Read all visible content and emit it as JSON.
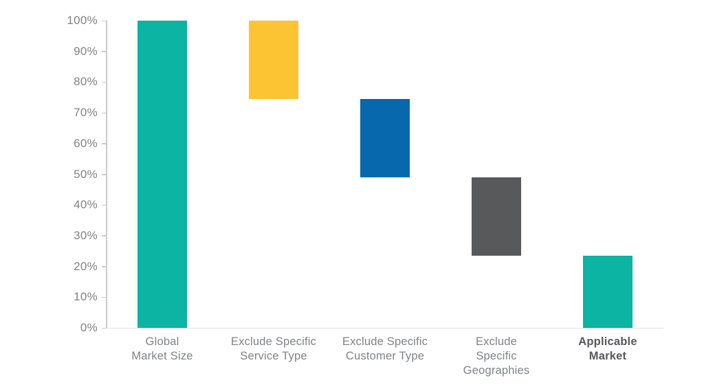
{
  "page": {
    "background": "#FFFFFF"
  },
  "chart_data": {
    "type": "bar",
    "subtype": "waterfall",
    "title": "",
    "xlabel": "",
    "ylabel": "",
    "grid": false,
    "legend": false,
    "categories": [
      "Global Market Size",
      "Exclude Specific Service Type",
      "Exclude Specific Customer Type",
      "Exclude Specific Geographies",
      "Applicable Market"
    ],
    "series": [
      {
        "name": "market-funnel",
        "segments": [
          {
            "category": "Global Market Size",
            "from": 0,
            "to": 100,
            "color": "#0BB4A3",
            "label_lines": [
              "Global",
              "Market Size"
            ],
            "label_bold": false
          },
          {
            "category": "Exclude Specific Service Type",
            "from": 74.5,
            "to": 100,
            "color": "#FCC333",
            "label_lines": [
              "Exclude Specific",
              "Service Type"
            ],
            "label_bold": false
          },
          {
            "category": "Exclude Specific Customer Type",
            "from": 49,
            "to": 74.5,
            "color": "#0768AE",
            "label_lines": [
              "Exclude Specific",
              "Customer Type"
            ],
            "label_bold": false
          },
          {
            "category": "Exclude Specific Geographies",
            "from": 23.5,
            "to": 49,
            "color": "#58595B",
            "label_lines": [
              "Exclude",
              "Specific",
              "Geographies"
            ],
            "label_bold": false
          },
          {
            "category": "Applicable Market",
            "from": 0,
            "to": 23.5,
            "color": "#0BB4A3",
            "label_lines": [
              "Applicable",
              "Market"
            ],
            "label_bold": true
          }
        ]
      }
    ],
    "y_axis": {
      "min": 0,
      "max": 100,
      "step": 10,
      "format": "percent",
      "tick_labels": [
        "0%",
        "10%",
        "20%",
        "30%",
        "40%",
        "50%",
        "60%",
        "70%",
        "80%",
        "90%",
        "100%"
      ]
    },
    "colors": {
      "teal": "#0BB4A3",
      "yellow": "#FCC333",
      "blue": "#0768AE",
      "dark_gray": "#58595B",
      "axis_line": "#C9CACB",
      "baseline": "#E4E4E5",
      "tick_text": "#808285",
      "label_text": "#7F8285",
      "label_text_bold": "#57585B"
    }
  }
}
